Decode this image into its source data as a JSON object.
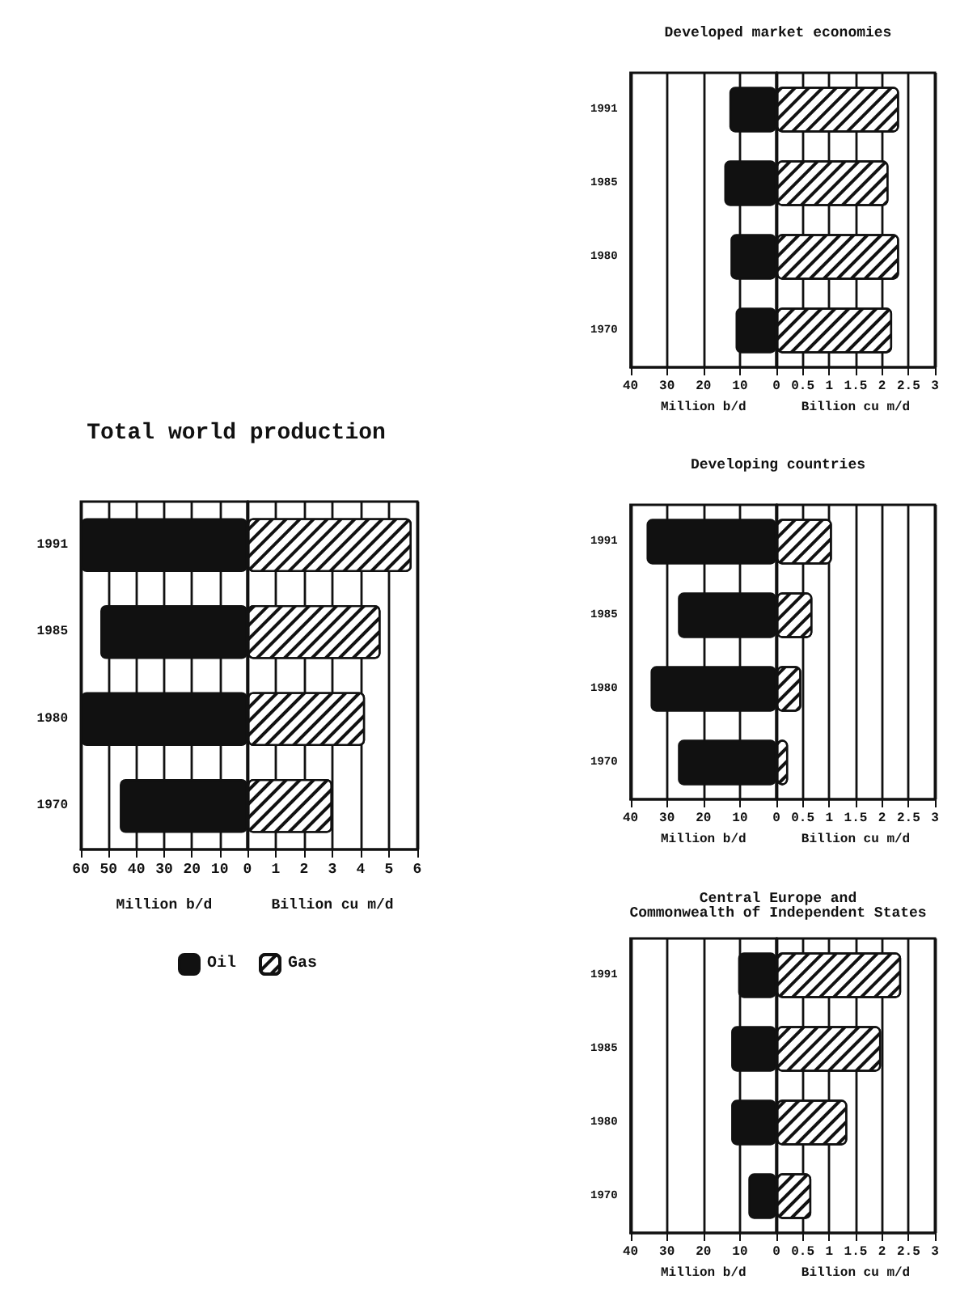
{
  "chart_data": [
    {
      "type": "bar",
      "orientation": "horizontal",
      "title": "Total world production",
      "categories": [
        "1991",
        "1985",
        "1980",
        "1970"
      ],
      "xlabel": "Million b/d",
      "xlim": [
        60,
        0
      ],
      "xticks": [
        60,
        50,
        40,
        30,
        20,
        10,
        0
      ],
      "grid": "x",
      "legend": "bottom",
      "series": [
        {
          "name": "Oil",
          "color": "#111111",
          "values": [
            60,
            53,
            60,
            46
          ]
        }
      ]
    },
    {
      "type": "bar",
      "orientation": "horizontal",
      "categories": [
        "1991",
        "1985",
        "1980",
        "1970"
      ],
      "xlabel": "Billion cu m/d",
      "xlim": [
        0,
        6
      ],
      "xticks": [
        1,
        2,
        3,
        4,
        5,
        6
      ],
      "grid": "x",
      "legend": "bottom",
      "tick_labels": "x",
      "series": [
        {
          "name": "Gas",
          "color": "#ffffff",
          "values": [
            5.8,
            4.7,
            4.15,
            3.0
          ]
        }
      ]
    },
    {
      "type": "bar",
      "orientation": "horizontal",
      "title": "Developed market economies",
      "categories": [
        "1991",
        "1985",
        "1980",
        "1970"
      ],
      "xlabel": "Million b/d",
      "xlim": [
        40,
        0
      ],
      "xticks": [
        40,
        30,
        20,
        10,
        0
      ],
      "grid": "x",
      "series": [
        {
          "color": "#111111",
          "values": [
            12.9,
            14.3,
            12.6,
            11.2
          ]
        }
      ]
    },
    {
      "type": "bar",
      "orientation": "horizontal",
      "categories": [
        "1991",
        "1985",
        "1980",
        "1970"
      ],
      "xlabel": "Billion cu m/d",
      "xlim": [
        0,
        3
      ],
      "xticks": [
        0.5,
        1,
        1.5,
        2,
        2.5,
        3
      ],
      "grid": "x",
      "tick_labels": "x",
      "series": [
        {
          "color": "#ffffff",
          "values": [
            2.32,
            2.12,
            2.32,
            2.19
          ]
        }
      ]
    },
    {
      "type": "bar",
      "orientation": "horizontal",
      "title": "Developing countries",
      "categories": [
        "1991",
        "1985",
        "1980",
        "1970"
      ],
      "xlabel": "Million b/d",
      "xlim": [
        40,
        0
      ],
      "xticks": [
        40,
        30,
        20,
        10,
        0
      ],
      "grid": "x",
      "series": [
        {
          "color": "#111111",
          "values": [
            35.6,
            27,
            34.5,
            27
          ]
        }
      ]
    },
    {
      "type": "bar",
      "orientation": "horizontal",
      "categories": [
        "1991",
        "1985",
        "1980",
        "1970"
      ],
      "xlabel": "Billion cu m/d",
      "xlim": [
        0,
        3
      ],
      "xticks": [
        0.5,
        1,
        1.5,
        2,
        2.5,
        3
      ],
      "grid": "x",
      "tick_labels": "x",
      "series": [
        {
          "color": "#ffffff",
          "values": [
            1.05,
            0.68,
            0.47,
            0.22
          ]
        }
      ]
    },
    {
      "type": "bar",
      "orientation": "horizontal",
      "title": "Central Europe and\nCommonwealth of Independent States",
      "categories": [
        "1991",
        "1985",
        "1980",
        "1970"
      ],
      "xlabel": "Million b/d",
      "xlim": [
        40,
        0
      ],
      "xticks": [
        40,
        30,
        20,
        10,
        0
      ],
      "grid": "x",
      "series": [
        {
          "color": "#111111",
          "values": [
            10.5,
            12.4,
            12.4,
            7.7
          ]
        }
      ]
    },
    {
      "type": "bar",
      "orientation": "horizontal",
      "categories": [
        "1991",
        "1985",
        "1980",
        "1970"
      ],
      "xlabel": "Billion cu m/d",
      "xlim": [
        0,
        3
      ],
      "xticks": [
        0.5,
        1,
        1.5,
        2,
        2.5,
        3
      ],
      "grid": "x",
      "tick_labels": "x",
      "series": [
        {
          "color": "#ffffff",
          "values": [
            2.36,
            1.98,
            1.34,
            0.66
          ]
        }
      ]
    }
  ]
}
